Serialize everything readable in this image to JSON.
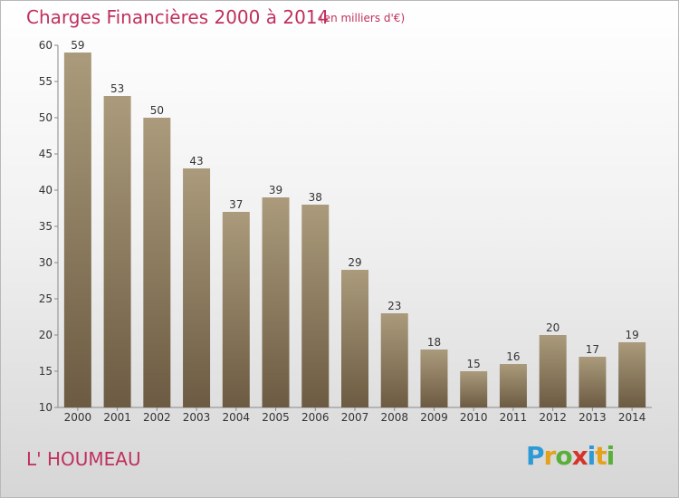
{
  "header": {
    "title": "Charges Financières 2000 à 2014",
    "unit": "(en milliers d'€)"
  },
  "footer": {
    "place": "L' HOUMEAU",
    "logo": "Proxiti"
  },
  "colors": {
    "title": "#c0305c",
    "bar_light": "#a8987a",
    "bar_dark": "#6f5f45"
  },
  "chart_data": {
    "type": "bar",
    "title": "Charges Financières 2000 à 2014",
    "categories": [
      "2000",
      "2001",
      "2002",
      "2003",
      "2004",
      "2005",
      "2006",
      "2007",
      "2008",
      "2009",
      "2010",
      "2011",
      "2012",
      "2013",
      "2014"
    ],
    "values": [
      59,
      53,
      50,
      43,
      37,
      39,
      38,
      29,
      23,
      18,
      15,
      16,
      20,
      17,
      19
    ],
    "ylim": [
      10,
      60
    ],
    "yticks": [
      10,
      15,
      20,
      25,
      30,
      35,
      40,
      45,
      50,
      55,
      60
    ],
    "grid": false
  }
}
